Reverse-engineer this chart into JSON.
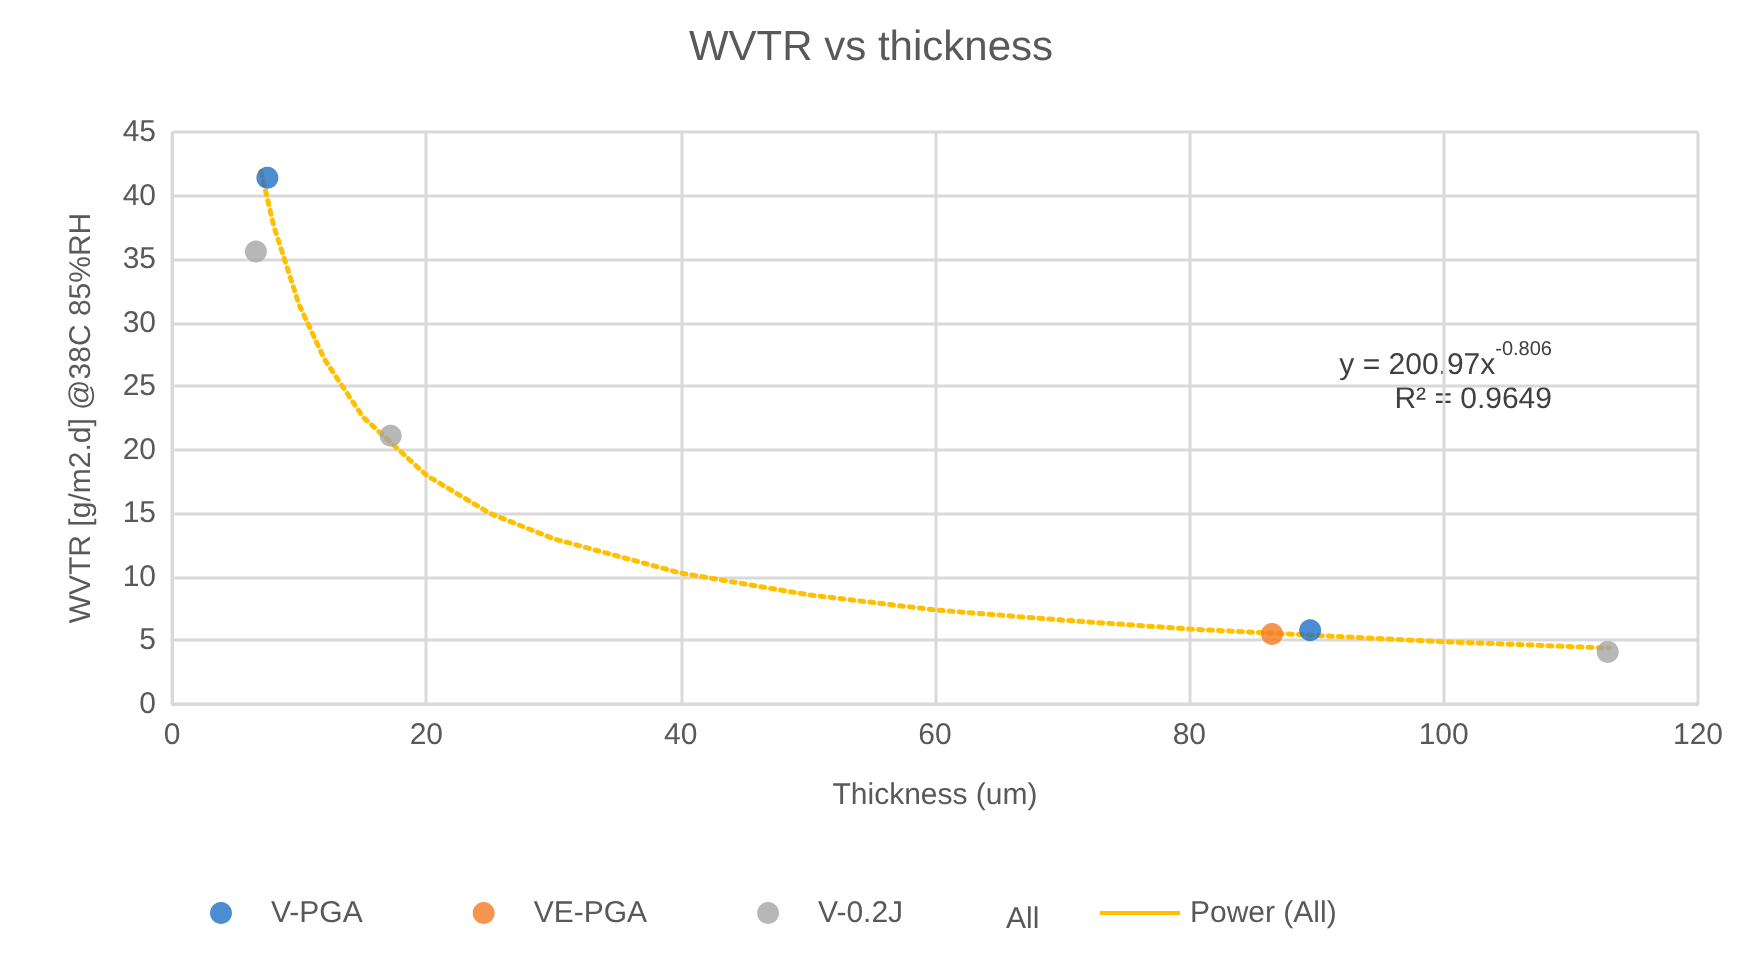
{
  "chart_data": {
    "type": "scatter",
    "title": "WVTR vs thickness",
    "xlabel": "Thickness (um)",
    "ylabel": "WVTR [g/m2.d] @38C 85%RH",
    "xlim": [
      0,
      120
    ],
    "xticks": [
      0,
      20,
      40,
      60,
      80,
      100,
      {
        "value": 120,
        "label": "120"
      }
    ],
    "ylim": [
      0,
      45
    ],
    "yticks": [
      0,
      5,
      10,
      15,
      20,
      25,
      30,
      35,
      40,
      45
    ],
    "grid": true,
    "legend": "bottom",
    "marker": "circle",
    "annotations": [
      "y = 200.97x$^{-0.806}$",
      "R² = 0.9649",
      "All"
    ],
    "series": [
      {
        "name": "V-PGA",
        "color": "#1f6fc5",
        "x": [
          7.5,
          89.5
        ],
        "values": [
          41.4,
          5.8
        ]
      },
      {
        "name": "VE-PGA",
        "color": "#f47b20",
        "x": [
          86.5
        ],
        "values": [
          5.5
        ]
      },
      {
        "name": "V-0.2J",
        "color": "#a5a5a5",
        "x": [
          6.6,
          17.2,
          112.9
        ],
        "values": [
          35.6,
          21.1,
          4.1
        ]
      },
      {
        "name": "Power (All)",
        "type": "line",
        "marker": "none",
        "line_style": "dotted",
        "color": "#ffc000",
        "x": [
          7,
          8,
          10,
          12,
          15,
          20,
          25,
          30,
          40,
          50,
          60,
          70,
          80,
          90,
          100,
          113
        ],
        "values": [
          41.9,
          37.6,
          31.4,
          27.1,
          22.6,
          18.0,
          15.0,
          13.0,
          10.3,
          8.6,
          7.4,
          6.6,
          5.9,
          5.4,
          4.9,
          4.4
        ]
      }
    ]
  }
}
